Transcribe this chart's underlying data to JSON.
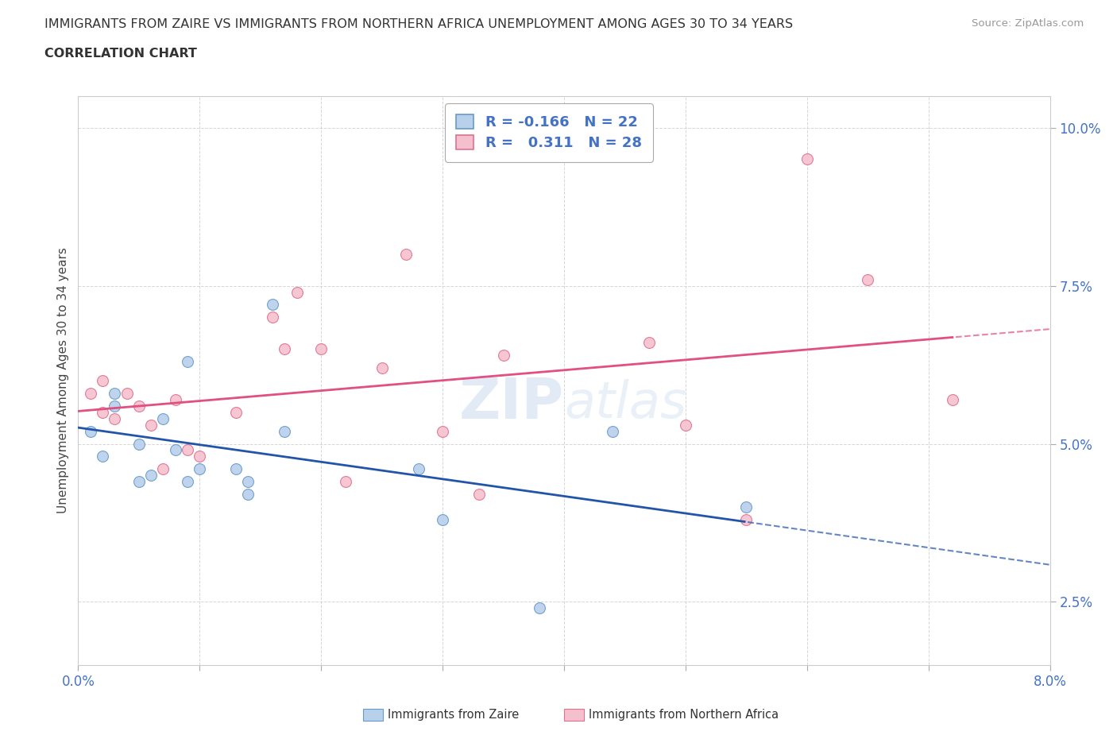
{
  "title_line1": "IMMIGRANTS FROM ZAIRE VS IMMIGRANTS FROM NORTHERN AFRICA UNEMPLOYMENT AMONG AGES 30 TO 34 YEARS",
  "title_line2": "CORRELATION CHART",
  "source": "Source: ZipAtlas.com",
  "ylabel": "Unemployment Among Ages 30 to 34 years",
  "xlim": [
    0.0,
    0.08
  ],
  "ylim": [
    0.015,
    0.105
  ],
  "yticks": [
    0.025,
    0.05,
    0.075,
    0.1
  ],
  "ytick_labels": [
    "2.5%",
    "5.0%",
    "7.5%",
    "10.0%"
  ],
  "xticks": [
    0.0,
    0.01,
    0.02,
    0.03,
    0.04,
    0.05,
    0.06,
    0.07,
    0.08
  ],
  "xtick_labels": [
    "0.0%",
    "",
    "",
    "",
    "",
    "",
    "",
    "",
    "8.0%"
  ],
  "zaire_color": "#b8d0ea",
  "zaire_edge_color": "#6699cc",
  "northern_africa_color": "#f5c0ce",
  "northern_africa_edge_color": "#e07090",
  "zaire_R": -0.166,
  "zaire_N": 22,
  "northern_africa_R": 0.311,
  "northern_africa_N": 28,
  "zaire_x": [
    0.001,
    0.002,
    0.003,
    0.003,
    0.005,
    0.005,
    0.006,
    0.007,
    0.008,
    0.009,
    0.009,
    0.01,
    0.013,
    0.014,
    0.014,
    0.016,
    0.017,
    0.028,
    0.03,
    0.038,
    0.044,
    0.055
  ],
  "zaire_y": [
    0.052,
    0.048,
    0.056,
    0.058,
    0.05,
    0.044,
    0.045,
    0.054,
    0.049,
    0.063,
    0.044,
    0.046,
    0.046,
    0.044,
    0.042,
    0.072,
    0.052,
    0.046,
    0.038,
    0.024,
    0.052,
    0.04
  ],
  "northern_africa_x": [
    0.001,
    0.002,
    0.002,
    0.003,
    0.004,
    0.005,
    0.006,
    0.007,
    0.008,
    0.009,
    0.01,
    0.013,
    0.016,
    0.017,
    0.018,
    0.02,
    0.022,
    0.025,
    0.027,
    0.03,
    0.033,
    0.035,
    0.047,
    0.05,
    0.055,
    0.06,
    0.065,
    0.072
  ],
  "northern_africa_y": [
    0.058,
    0.06,
    0.055,
    0.054,
    0.058,
    0.056,
    0.053,
    0.046,
    0.057,
    0.049,
    0.048,
    0.055,
    0.07,
    0.065,
    0.074,
    0.065,
    0.044,
    0.062,
    0.08,
    0.052,
    0.042,
    0.064,
    0.066,
    0.053,
    0.038,
    0.095,
    0.076,
    0.057
  ],
  "blue_line_color": "#2255aa",
  "pink_line_color": "#e05080",
  "grid_color": "#cccccc",
  "bg_color": "#ffffff",
  "title_color": "#333333",
  "axis_color": "#4472c4",
  "marker_size": 100
}
